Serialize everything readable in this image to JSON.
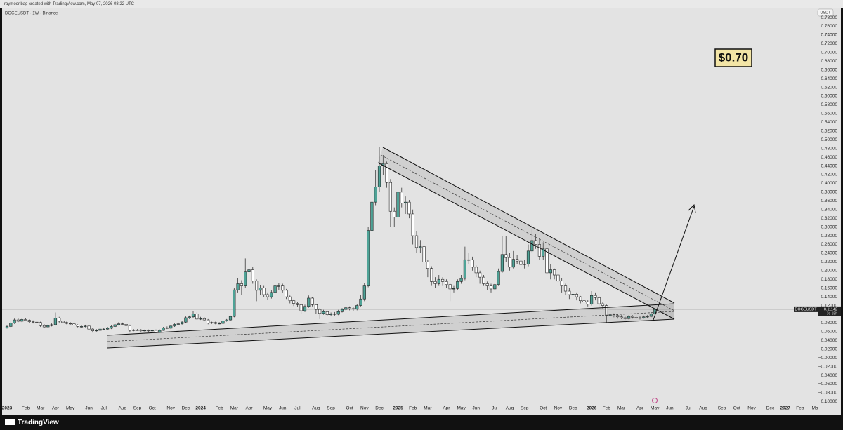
{
  "header": "raymoonbag created with TradingView.com, May 07, 2026 08:22 UTC",
  "footer": "TradingView",
  "chart_data": {
    "type": "candlestick",
    "title": "DOGEUSDT · 1W · Binance",
    "currency": "USDT",
    "annotation": "$0.70",
    "symbol_label": "DOGEUSDT",
    "last_price": {
      "value": 0.11142,
      "label": "0.11142"
    },
    "countdown": "3d 15h",
    "up_color": "#4fa397",
    "down_color": "#ffffff",
    "grid": false,
    "ylim": [
      -0.109,
      0.801
    ],
    "yticks": [
      {
        "value": 0.78,
        "label": "0.78000"
      },
      {
        "value": 0.76,
        "label": "0.76000"
      },
      {
        "value": 0.74,
        "label": "0.74000"
      },
      {
        "value": 0.72,
        "label": "0.72000"
      },
      {
        "value": 0.7,
        "label": "0.70000"
      },
      {
        "value": 0.68,
        "label": "0.68000"
      },
      {
        "value": 0.66,
        "label": "0.66000"
      },
      {
        "value": 0.64,
        "label": "0.64000"
      },
      {
        "value": 0.62,
        "label": "0.62000"
      },
      {
        "value": 0.6,
        "label": "0.60000"
      },
      {
        "value": 0.58,
        "label": "0.58000"
      },
      {
        "value": 0.56,
        "label": "0.56000"
      },
      {
        "value": 0.54,
        "label": "0.54000"
      },
      {
        "value": 0.52,
        "label": "0.52000"
      },
      {
        "value": 0.5,
        "label": "0.50000"
      },
      {
        "value": 0.48,
        "label": "0.48000"
      },
      {
        "value": 0.46,
        "label": "0.46000"
      },
      {
        "value": 0.44,
        "label": "0.44000"
      },
      {
        "value": 0.42,
        "label": "0.42000"
      },
      {
        "value": 0.4,
        "label": "0.40000"
      },
      {
        "value": 0.38,
        "label": "0.38000"
      },
      {
        "value": 0.36,
        "label": "0.36000"
      },
      {
        "value": 0.34,
        "label": "0.34000"
      },
      {
        "value": 0.32,
        "label": "0.32000"
      },
      {
        "value": 0.3,
        "label": "0.30000"
      },
      {
        "value": 0.28,
        "label": "0.28000"
      },
      {
        "value": 0.26,
        "label": "0.26000"
      },
      {
        "value": 0.24,
        "label": "0.24000"
      },
      {
        "value": 0.22,
        "label": "0.22000"
      },
      {
        "value": 0.2,
        "label": "0.20000"
      },
      {
        "value": 0.18,
        "label": "0.18000"
      },
      {
        "value": 0.16,
        "label": "0.16000"
      },
      {
        "value": 0.14,
        "label": "0.14000"
      },
      {
        "value": 0.12,
        "label": "0.12000"
      },
      {
        "value": 0.1,
        "label": "0.10000"
      },
      {
        "value": 0.08,
        "label": "0.08000"
      },
      {
        "value": 0.06,
        "label": "0.06000"
      },
      {
        "value": 0.04,
        "label": "0.04000"
      },
      {
        "value": 0.02,
        "label": "0.02000"
      },
      {
        "value": 0,
        "label": "−0.00000"
      },
      {
        "value": -0.02,
        "label": "−0.02000"
      },
      {
        "value": -0.04,
        "label": "−0.04000"
      },
      {
        "value": -0.06,
        "label": "−0.06000"
      },
      {
        "value": -0.08,
        "label": "−0.08000"
      },
      {
        "value": -0.1,
        "label": "−0.10000"
      }
    ],
    "categories": [
      "2023",
      null,
      null,
      null,
      null,
      "Feb",
      null,
      null,
      null,
      "Mar",
      null,
      null,
      null,
      "Apr",
      null,
      null,
      null,
      "May",
      null,
      null,
      null,
      null,
      "Jun",
      null,
      null,
      null,
      "Jul",
      null,
      null,
      null,
      null,
      "Aug",
      null,
      null,
      null,
      "Sep",
      null,
      null,
      null,
      "Oct",
      null,
      null,
      null,
      null,
      "Nov",
      null,
      null,
      null,
      "Dec",
      null,
      null,
      null,
      "2024",
      null,
      null,
      null,
      null,
      "Feb",
      null,
      null,
      null,
      "Mar",
      null,
      null,
      null,
      "Apr",
      null,
      null,
      null,
      null,
      "May",
      null,
      null,
      null,
      "Jun",
      null,
      null,
      null,
      "Jul",
      null,
      null,
      null,
      null,
      "Aug",
      null,
      null,
      null,
      "Sep",
      null,
      null,
      null,
      null,
      "Oct",
      null,
      null,
      null,
      "Nov",
      null,
      null,
      null,
      "Dec",
      null,
      null,
      null,
      null,
      "2025",
      null,
      null,
      null,
      "Feb",
      null,
      null,
      null,
      "Mar",
      null,
      null,
      null,
      null,
      "Apr",
      null,
      null,
      null,
      "May",
      null,
      null,
      null,
      "Jun",
      null,
      null,
      null,
      null,
      "Jul",
      null,
      null,
      null,
      "Aug",
      null,
      null,
      null,
      "Sep",
      null,
      null,
      null,
      null,
      "Oct",
      null,
      null,
      null,
      "Nov",
      null,
      null,
      null,
      "Dec",
      null,
      null,
      null,
      null,
      "2026",
      null,
      null,
      null,
      "Feb",
      null,
      null,
      null,
      "Mar",
      null,
      null,
      null,
      null,
      "Apr",
      null,
      null,
      null,
      "May",
      null,
      null,
      null,
      "Jun",
      null,
      null,
      null,
      null,
      "Jul",
      null,
      null,
      null,
      "Aug",
      null,
      null,
      null,
      null,
      "Sep",
      null,
      null,
      null,
      "Oct",
      null,
      null,
      null,
      "Nov",
      null,
      null,
      null,
      null,
      "Dec",
      null,
      null,
      null,
      "2027",
      null,
      null,
      null,
      "Feb",
      null,
      null,
      null,
      "Ma"
    ],
    "open": [
      0.069,
      0.072,
      0.08,
      0.087,
      0.084,
      0.088,
      0.086,
      0.083,
      0.082,
      0.081,
      0.074,
      0.071,
      0.074,
      0.076,
      0.091,
      0.084,
      0.081,
      0.079,
      0.078,
      0.075,
      0.072,
      0.072,
      0.073,
      0.066,
      0.062,
      0.063,
      0.066,
      0.066,
      0.068,
      0.072,
      0.076,
      0.078,
      0.077,
      0.074,
      0.063,
      0.064,
      0.064,
      0.062,
      0.063,
      0.062,
      0.063,
      0.059,
      0.063,
      0.069,
      0.068,
      0.073,
      0.077,
      0.078,
      0.082,
      0.092,
      0.094,
      0.101,
      0.089,
      0.09,
      0.087,
      0.08,
      0.081,
      0.079,
      0.079,
      0.085,
      0.087,
      0.095,
      0.156,
      0.17,
      0.165,
      0.197,
      0.202,
      0.176,
      0.155,
      0.16,
      0.145,
      0.14,
      0.15,
      0.165,
      0.165,
      0.155,
      0.14,
      0.131,
      0.125,
      0.122,
      0.108,
      0.118,
      0.137,
      0.122,
      0.111,
      0.102,
      0.106,
      0.099,
      0.101,
      0.1,
      0.106,
      0.111,
      0.115,
      0.113,
      0.112,
      0.12,
      0.135,
      0.165,
      0.292,
      0.357,
      0.392,
      0.44,
      0.445,
      0.402,
      0.336,
      0.323,
      0.38,
      0.355,
      0.357,
      0.33,
      0.28,
      0.253,
      0.255,
      0.22,
      0.205,
      0.175,
      0.17,
      0.18,
      0.175,
      0.168,
      0.158,
      0.159,
      0.175,
      0.182,
      0.225,
      0.225,
      0.208,
      0.195,
      0.185,
      0.17,
      0.165,
      0.158,
      0.168,
      0.198,
      0.237,
      0.23,
      0.208,
      0.226,
      0.222,
      0.214,
      0.215,
      0.245,
      0.269,
      0.26,
      0.233,
      0.25,
      0.195,
      0.202,
      0.19,
      0.176,
      0.165,
      0.153,
      0.145,
      0.146,
      0.14,
      0.131,
      0.128,
      0.123,
      0.143,
      0.138,
      0.124,
      0.12,
      0.097,
      0.099,
      0.097,
      0.094,
      0.092,
      0.09,
      0.095,
      0.093,
      0.091,
      0.092,
      0.094,
      0.095,
      0.101,
      null,
      null,
      null,
      null,
      null,
      null,
      null,
      null,
      null,
      null,
      null,
      null,
      null,
      null,
      null,
      null,
      null,
      null,
      null,
      null,
      null,
      null,
      null,
      null,
      null,
      null,
      null,
      null,
      null,
      null,
      null,
      null,
      null,
      null,
      null,
      null,
      null,
      null,
      null,
      null,
      null,
      null,
      null
    ],
    "high": [
      0.075,
      0.083,
      0.09,
      0.091,
      0.092,
      0.091,
      0.088,
      0.086,
      0.085,
      0.083,
      0.077,
      0.077,
      0.079,
      0.104,
      0.094,
      0.086,
      0.083,
      0.082,
      0.08,
      0.077,
      0.075,
      0.076,
      0.075,
      0.068,
      0.066,
      0.068,
      0.069,
      0.071,
      0.075,
      0.079,
      0.082,
      0.081,
      0.079,
      0.076,
      0.066,
      0.066,
      0.066,
      0.065,
      0.065,
      0.065,
      0.065,
      0.065,
      0.071,
      0.072,
      0.076,
      0.079,
      0.081,
      0.085,
      0.095,
      0.097,
      0.107,
      0.105,
      0.094,
      0.093,
      0.089,
      0.083,
      0.083,
      0.082,
      0.087,
      0.089,
      0.097,
      0.16,
      0.182,
      0.178,
      0.228,
      0.222,
      0.208,
      0.18,
      0.166,
      0.165,
      0.15,
      0.156,
      0.17,
      0.172,
      0.17,
      0.158,
      0.143,
      0.134,
      0.128,
      0.124,
      0.122,
      0.143,
      0.14,
      0.124,
      0.114,
      0.11,
      0.108,
      0.104,
      0.105,
      0.11,
      0.114,
      0.118,
      0.118,
      0.116,
      0.124,
      0.145,
      0.172,
      0.3,
      0.375,
      0.43,
      0.484,
      0.465,
      0.45,
      0.41,
      0.345,
      0.415,
      0.39,
      0.37,
      0.362,
      0.34,
      0.29,
      0.27,
      0.26,
      0.225,
      0.21,
      0.185,
      0.19,
      0.185,
      0.18,
      0.172,
      0.165,
      0.18,
      0.19,
      0.255,
      0.24,
      0.232,
      0.212,
      0.2,
      0.19,
      0.175,
      0.17,
      0.172,
      0.205,
      0.28,
      0.28,
      0.24,
      0.245,
      0.235,
      0.23,
      0.225,
      0.26,
      0.305,
      0.285,
      0.275,
      0.265,
      0.26,
      0.215,
      0.205,
      0.195,
      0.182,
      0.17,
      0.16,
      0.155,
      0.15,
      0.142,
      0.135,
      0.132,
      0.153,
      0.15,
      0.141,
      0.128,
      0.122,
      0.104,
      0.102,
      0.101,
      0.098,
      0.096,
      0.098,
      0.098,
      0.096,
      0.095,
      0.097,
      0.098,
      0.103,
      0.114,
      null,
      null,
      null,
      null,
      null,
      null,
      null,
      null,
      null,
      null,
      null,
      null,
      null,
      null,
      null,
      null,
      null,
      null,
      null,
      null,
      null,
      null,
      null,
      null,
      null,
      null,
      null,
      null,
      null,
      null,
      null,
      null,
      null,
      null,
      null,
      null,
      null,
      null,
      null,
      null,
      null,
      null,
      null
    ],
    "low": [
      0.067,
      0.07,
      0.078,
      0.082,
      0.082,
      0.084,
      0.08,
      0.079,
      0.078,
      0.071,
      0.068,
      0.069,
      0.072,
      0.074,
      0.081,
      0.079,
      0.077,
      0.076,
      0.073,
      0.07,
      0.069,
      0.07,
      0.064,
      0.058,
      0.06,
      0.061,
      0.064,
      0.064,
      0.066,
      0.07,
      0.074,
      0.075,
      0.072,
      0.058,
      0.061,
      0.062,
      0.06,
      0.06,
      0.06,
      0.06,
      0.057,
      0.058,
      0.062,
      0.066,
      0.066,
      0.071,
      0.075,
      0.076,
      0.08,
      0.089,
      0.092,
      0.087,
      0.087,
      0.085,
      0.077,
      0.078,
      0.077,
      0.077,
      0.077,
      0.083,
      0.085,
      0.093,
      0.15,
      0.145,
      0.16,
      0.185,
      0.17,
      0.13,
      0.145,
      0.14,
      0.133,
      0.136,
      0.147,
      0.155,
      0.15,
      0.135,
      0.125,
      0.119,
      0.116,
      0.1,
      0.105,
      0.115,
      0.118,
      0.1,
      0.089,
      0.099,
      0.096,
      0.096,
      0.097,
      0.098,
      0.104,
      0.108,
      0.109,
      0.108,
      0.109,
      0.118,
      0.13,
      0.162,
      0.285,
      0.35,
      0.38,
      0.42,
      0.39,
      0.3,
      0.3,
      0.315,
      0.345,
      0.33,
      0.32,
      0.26,
      0.24,
      0.24,
      0.2,
      0.185,
      0.165,
      0.16,
      0.165,
      0.165,
      0.16,
      0.13,
      0.15,
      0.155,
      0.17,
      0.178,
      0.215,
      0.2,
      0.185,
      0.17,
      0.165,
      0.155,
      0.15,
      0.155,
      0.165,
      0.195,
      0.22,
      0.2,
      0.205,
      0.215,
      0.205,
      0.205,
      0.21,
      0.24,
      0.25,
      0.225,
      0.225,
      0.095,
      0.18,
      0.18,
      0.165,
      0.15,
      0.145,
      0.135,
      0.135,
      0.132,
      0.125,
      0.12,
      0.118,
      0.12,
      0.132,
      0.118,
      0.113,
      0.08,
      0.092,
      0.093,
      0.09,
      0.089,
      0.087,
      0.088,
      0.09,
      0.089,
      0.088,
      0.09,
      0.091,
      0.093,
      0.099,
      null,
      null,
      null,
      null,
      null,
      null,
      null,
      null,
      null,
      null,
      null,
      null,
      null,
      null,
      null,
      null,
      null,
      null,
      null,
      null,
      null,
      null,
      null,
      null,
      null,
      null,
      null,
      null,
      null,
      null,
      null,
      null,
      null,
      null,
      null,
      null,
      null,
      null,
      null,
      null,
      null,
      null,
      null
    ],
    "close": [
      0.072,
      0.08,
      0.087,
      0.084,
      0.088,
      0.086,
      0.083,
      0.082,
      0.081,
      0.074,
      0.071,
      0.074,
      0.076,
      0.091,
      0.084,
      0.081,
      0.079,
      0.078,
      0.075,
      0.072,
      0.072,
      0.073,
      0.066,
      0.062,
      0.063,
      0.066,
      0.066,
      0.068,
      0.072,
      0.076,
      0.078,
      0.077,
      0.074,
      0.063,
      0.064,
      0.064,
      0.062,
      0.063,
      0.062,
      0.063,
      0.059,
      0.063,
      0.069,
      0.068,
      0.073,
      0.077,
      0.078,
      0.082,
      0.092,
      0.094,
      0.101,
      0.089,
      0.09,
      0.087,
      0.08,
      0.081,
      0.079,
      0.079,
      0.085,
      0.087,
      0.095,
      0.156,
      0.17,
      0.165,
      0.197,
      0.202,
      0.176,
      0.155,
      0.16,
      0.145,
      0.14,
      0.15,
      0.165,
      0.165,
      0.155,
      0.14,
      0.131,
      0.125,
      0.122,
      0.108,
      0.118,
      0.137,
      0.122,
      0.111,
      0.102,
      0.106,
      0.099,
      0.101,
      0.1,
      0.106,
      0.111,
      0.115,
      0.113,
      0.112,
      0.12,
      0.135,
      0.165,
      0.292,
      0.357,
      0.392,
      0.44,
      0.445,
      0.402,
      0.336,
      0.323,
      0.38,
      0.355,
      0.357,
      0.33,
      0.28,
      0.253,
      0.255,
      0.22,
      0.205,
      0.175,
      0.17,
      0.18,
      0.175,
      0.168,
      0.158,
      0.159,
      0.175,
      0.182,
      0.225,
      0.225,
      0.208,
      0.195,
      0.185,
      0.17,
      0.165,
      0.158,
      0.168,
      0.198,
      0.237,
      0.23,
      0.208,
      0.226,
      0.222,
      0.214,
      0.215,
      0.245,
      0.269,
      0.26,
      0.233,
      0.25,
      0.195,
      0.202,
      0.19,
      0.176,
      0.165,
      0.153,
      0.145,
      0.146,
      0.14,
      0.131,
      0.128,
      0.123,
      0.143,
      0.138,
      0.124,
      0.12,
      0.097,
      0.099,
      0.097,
      0.094,
      0.092,
      0.09,
      0.095,
      0.093,
      0.091,
      0.092,
      0.094,
      0.095,
      0.101,
      0.111,
      null,
      null,
      null,
      null,
      null,
      null,
      null,
      null,
      null,
      null,
      null,
      null,
      null,
      null,
      null,
      null,
      null,
      null,
      null,
      null,
      null,
      null,
      null,
      null,
      null,
      null,
      null,
      null,
      null,
      null,
      null,
      null,
      null,
      null,
      null,
      null,
      null,
      null,
      null,
      null,
      null,
      null,
      null
    ]
  }
}
